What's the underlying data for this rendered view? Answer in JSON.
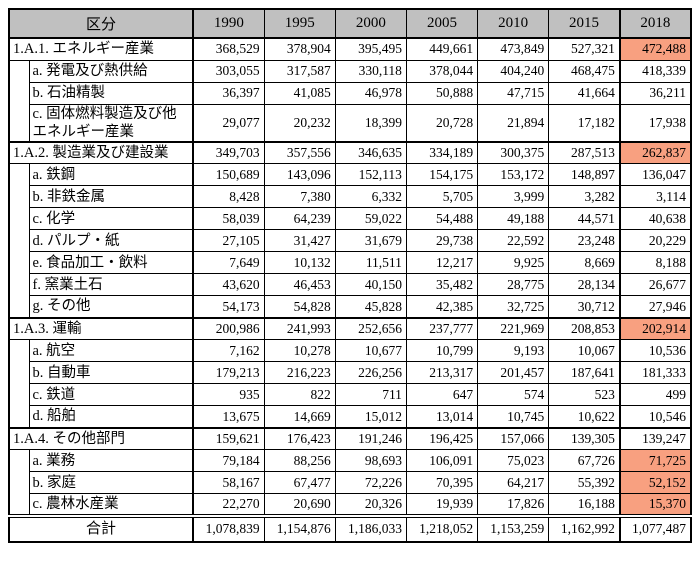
{
  "colors": {
    "header_bg": "#c0c0c0",
    "highlight": "#f8a080"
  },
  "table": {
    "header": {
      "category_label": "区分",
      "years": [
        "1990",
        "1995",
        "2000",
        "2005",
        "2010",
        "2015",
        "2018"
      ]
    },
    "sections": [
      {
        "label": "1.A.1. エネルギー産業",
        "values": [
          "368,529",
          "378,904",
          "395,495",
          "449,661",
          "473,849",
          "527,321",
          "472,488"
        ],
        "highlight_2018": true,
        "children": [
          {
            "label": "a. 発電及び熱供給",
            "values": [
              "303,055",
              "317,587",
              "330,118",
              "378,044",
              "404,240",
              "468,475",
              "418,339"
            ],
            "highlight_2018": false
          },
          {
            "label": "b. 石油精製",
            "values": [
              "36,397",
              "41,085",
              "46,978",
              "50,888",
              "47,715",
              "41,664",
              "36,211"
            ],
            "highlight_2018": false
          },
          {
            "label": "c. 固体燃料製造及び他エネルギー産業",
            "values": [
              "29,077",
              "20,232",
              "18,399",
              "20,728",
              "21,894",
              "17,182",
              "17,938"
            ],
            "highlight_2018": false
          }
        ]
      },
      {
        "label": "1.A.2. 製造業及び建設業",
        "values": [
          "349,703",
          "357,556",
          "346,635",
          "334,189",
          "300,375",
          "287,513",
          "262,837"
        ],
        "highlight_2018": true,
        "children": [
          {
            "label": "a. 鉄鋼",
            "values": [
              "150,689",
              "143,096",
              "152,113",
              "154,175",
              "153,172",
              "148,897",
              "136,047"
            ],
            "highlight_2018": false
          },
          {
            "label": "b. 非鉄金属",
            "values": [
              "8,428",
              "7,380",
              "6,332",
              "5,705",
              "3,999",
              "3,282",
              "3,114"
            ],
            "highlight_2018": false
          },
          {
            "label": "c. 化学",
            "values": [
              "58,039",
              "64,239",
              "59,022",
              "54,488",
              "49,188",
              "44,571",
              "40,638"
            ],
            "highlight_2018": false
          },
          {
            "label": "d. パルプ・紙",
            "values": [
              "27,105",
              "31,427",
              "31,679",
              "29,738",
              "22,592",
              "23,248",
              "20,229"
            ],
            "highlight_2018": false
          },
          {
            "label": "e. 食品加工・飲料",
            "values": [
              "7,649",
              "10,132",
              "11,511",
              "12,217",
              "9,925",
              "8,669",
              "8,188"
            ],
            "highlight_2018": false
          },
          {
            "label": "f. 窯業土石",
            "values": [
              "43,620",
              "46,453",
              "40,150",
              "35,482",
              "28,775",
              "28,134",
              "26,677"
            ],
            "highlight_2018": false
          },
          {
            "label": "g. その他",
            "values": [
              "54,173",
              "54,828",
              "45,828",
              "42,385",
              "32,725",
              "30,712",
              "27,946"
            ],
            "highlight_2018": false
          }
        ]
      },
      {
        "label": "1.A.3. 運輸",
        "values": [
          "200,986",
          "241,993",
          "252,656",
          "237,777",
          "221,969",
          "208,853",
          "202,914"
        ],
        "highlight_2018": true,
        "children": [
          {
            "label": "a. 航空",
            "values": [
              "7,162",
              "10,278",
              "10,677",
              "10,799",
              "9,193",
              "10,067",
              "10,536"
            ],
            "highlight_2018": false
          },
          {
            "label": "b. 自動車",
            "values": [
              "179,213",
              "216,223",
              "226,256",
              "213,317",
              "201,457",
              "187,641",
              "181,333"
            ],
            "highlight_2018": false
          },
          {
            "label": "c. 鉄道",
            "values": [
              "935",
              "822",
              "711",
              "647",
              "574",
              "523",
              "499"
            ],
            "highlight_2018": false
          },
          {
            "label": "d. 船舶",
            "values": [
              "13,675",
              "14,669",
              "15,012",
              "13,014",
              "10,745",
              "10,622",
              "10,546"
            ],
            "highlight_2018": false
          }
        ]
      },
      {
        "label": "1.A.4. その他部門",
        "values": [
          "159,621",
          "176,423",
          "191,246",
          "196,425",
          "157,066",
          "139,305",
          "139,247"
        ],
        "highlight_2018": false,
        "children": [
          {
            "label": "a. 業務",
            "values": [
              "79,184",
              "88,256",
              "98,693",
              "106,091",
              "75,023",
              "67,726",
              "71,725"
            ],
            "highlight_2018": true
          },
          {
            "label": "b. 家庭",
            "values": [
              "58,167",
              "67,477",
              "72,226",
              "70,395",
              "64,217",
              "55,392",
              "52,152"
            ],
            "highlight_2018": true
          },
          {
            "label": "c. 農林水産業",
            "values": [
              "22,270",
              "20,690",
              "20,326",
              "19,939",
              "17,826",
              "16,188",
              "15,370"
            ],
            "highlight_2018": true
          }
        ]
      }
    ],
    "total": {
      "label": "合計",
      "values": [
        "1,078,839",
        "1,154,876",
        "1,186,033",
        "1,218,052",
        "1,153,259",
        "1,162,992",
        "1,077,487"
      ],
      "highlight_2018": false
    }
  }
}
